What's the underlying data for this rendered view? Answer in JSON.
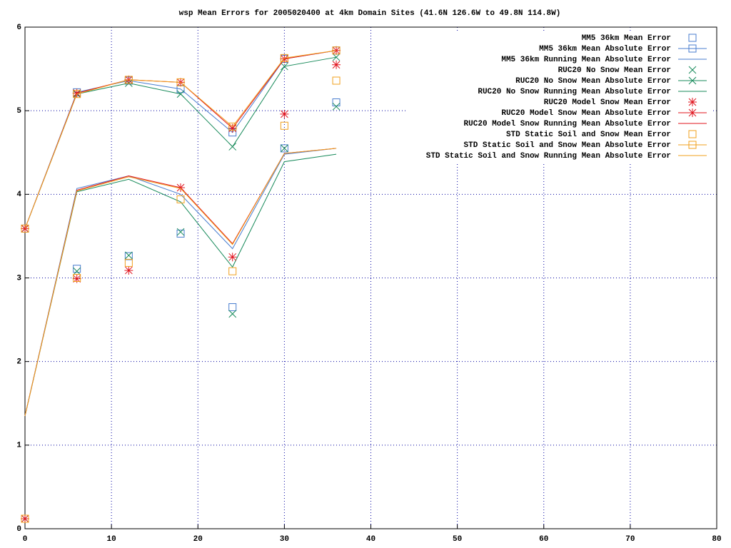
{
  "chart_data": {
    "type": "line",
    "title": "wsp Mean Errors for 2005020400 at 4km Domain Sites (41.6N 126.6W to 49.8N 114.8W)",
    "x": [
      0,
      6,
      12,
      18,
      24,
      30,
      36
    ],
    "xlim": [
      0,
      80
    ],
    "xticks": [
      0,
      10,
      20,
      30,
      40,
      50,
      60,
      70,
      80
    ],
    "ylim": [
      0,
      6
    ],
    "yticks": [
      0,
      1,
      2,
      3,
      4,
      5,
      6
    ],
    "grid": true,
    "legend": "top-right",
    "series": [
      {
        "name": "MM5 36km Mean Error",
        "color": "#4a7ecf",
        "style": "points",
        "marker": "square",
        "values": [
          0.12,
          3.11,
          3.26,
          3.53,
          2.65,
          4.55,
          5.1
        ]
      },
      {
        "name": "MM5 36km Mean Absolute Error",
        "color": "#4a7ecf",
        "style": "linespoints",
        "marker": "square",
        "values": [
          3.59,
          5.22,
          5.36,
          5.26,
          4.74,
          5.62,
          5.72
        ]
      },
      {
        "name": "MM5 36km Running Mean Absolute Error",
        "color": "#4a7ecf",
        "style": "lines",
        "values": [
          1.35,
          4.07,
          4.22,
          4.0,
          3.35,
          4.48,
          4.55
        ]
      },
      {
        "name": "RUC20 No Snow Mean Error",
        "color": "#178a5a",
        "style": "points",
        "marker": "x",
        "values": [
          0.12,
          3.08,
          3.27,
          3.55,
          2.57,
          4.55,
          5.05
        ]
      },
      {
        "name": "RUC20 No Snow Mean Absolute Error",
        "color": "#178a5a",
        "style": "linespoints",
        "marker": "x",
        "values": [
          3.59,
          5.2,
          5.33,
          5.2,
          4.57,
          5.53,
          5.64
        ]
      },
      {
        "name": "RUC20 No Snow Running Mean Absolute Error",
        "color": "#178a5a",
        "style": "lines",
        "values": [
          1.35,
          4.03,
          4.18,
          3.91,
          3.13,
          4.39,
          4.48
        ]
      },
      {
        "name": "RUC20 Model Snow Mean Error",
        "color": "#e0141e",
        "style": "points",
        "marker": "star",
        "values": [
          0.12,
          2.99,
          3.09,
          4.08,
          3.25,
          4.96,
          5.55
        ]
      },
      {
        "name": "RUC20 Model Snow Mean Absolute Error",
        "color": "#e0141e",
        "style": "linespoints",
        "marker": "star",
        "values": [
          3.59,
          5.21,
          5.37,
          5.34,
          4.79,
          5.62,
          5.72
        ]
      },
      {
        "name": "RUC20 Model Snow Running Mean Absolute Error",
        "color": "#e0141e",
        "style": "lines",
        "values": [
          1.35,
          4.05,
          4.22,
          4.08,
          3.41,
          4.49,
          4.55
        ]
      },
      {
        "name": "STD Static Soil and Snow Mean Error",
        "color": "#f0a01e",
        "style": "points",
        "marker": "square",
        "values": [
          0.12,
          3.0,
          3.18,
          3.94,
          3.08,
          4.82,
          5.36
        ]
      },
      {
        "name": "STD Static Soil and Snow Mean Absolute Error",
        "color": "#f0a01e",
        "style": "linespoints",
        "marker": "square",
        "values": [
          3.59,
          5.2,
          5.37,
          5.34,
          4.81,
          5.63,
          5.72
        ]
      },
      {
        "name": "STD Static Soil and Snow Running Mean Absolute Error",
        "color": "#f0a01e",
        "style": "lines",
        "values": [
          1.35,
          4.04,
          4.21,
          4.07,
          3.4,
          4.49,
          4.55
        ]
      }
    ]
  }
}
